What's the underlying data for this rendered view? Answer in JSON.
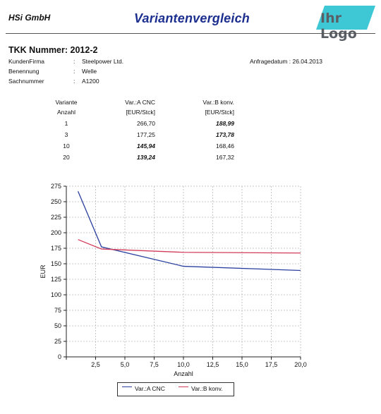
{
  "header": {
    "company": "HSi GmbH",
    "title": "Variantenvergleich",
    "logo_text": "Ihr Logo",
    "logo_color": "#3ec8d6",
    "title_color": "#1c2f8f"
  },
  "info": {
    "tkk": "TKK Nummer: 2012-2",
    "rows": [
      {
        "label": "KundenFirma",
        "value": "Steelpower Ltd."
      },
      {
        "label": "Benennung",
        "value": "Welle"
      },
      {
        "label": "Sachnummer",
        "value": "A1200"
      }
    ],
    "colon": ":",
    "request_date": "Anfragedatum : 26.04.2013"
  },
  "table": {
    "headers": [
      "Variante",
      "Var.:A CNC",
      "Var.:B konv."
    ],
    "subheaders": [
      "Anzahl",
      "[EUR/Stck]",
      "[EUR/Stck]"
    ],
    "rows": [
      {
        "anzahl": "1",
        "a": "266,70",
        "b": "188,99",
        "best": "b"
      },
      {
        "anzahl": "3",
        "a": "177,25",
        "b": "173,78",
        "best": "b"
      },
      {
        "anzahl": "10",
        "a": "145,94",
        "b": "168,46",
        "best": "a"
      },
      {
        "anzahl": "20",
        "a": "139,24",
        "b": "167,32",
        "best": "a"
      }
    ]
  },
  "chart_data": {
    "type": "line",
    "xlabel": "Anzahl",
    "ylabel": "EUR",
    "xlim": [
      0,
      20
    ],
    "ylim": [
      0,
      275
    ],
    "xticks": [
      0,
      2.5,
      5,
      7.5,
      10,
      12.5,
      15,
      17.5,
      20
    ],
    "xtick_labels": [
      "",
      "2,5",
      "5,0",
      "7,5",
      "10,0",
      "12,5",
      "15,0",
      "17,5",
      "20,0"
    ],
    "yticks": [
      0,
      25,
      50,
      75,
      100,
      125,
      150,
      175,
      200,
      225,
      250,
      275
    ],
    "ytick_labels": [
      "0",
      "25",
      "50",
      "75",
      "100",
      "125",
      "150",
      "175",
      "200",
      "225",
      "250",
      "275"
    ],
    "grid": true,
    "legend_position": "bottom-center",
    "series": [
      {
        "name": "Var.:A CNC",
        "color": "#2b3f9e",
        "x": [
          1,
          3,
          10,
          20
        ],
        "y": [
          266.7,
          177.25,
          145.94,
          139.24
        ]
      },
      {
        "name": "Var.:B konv.",
        "color": "#d23c5a",
        "x": [
          1,
          3,
          10,
          20
        ],
        "y": [
          188.99,
          173.78,
          168.46,
          167.32
        ]
      }
    ]
  }
}
